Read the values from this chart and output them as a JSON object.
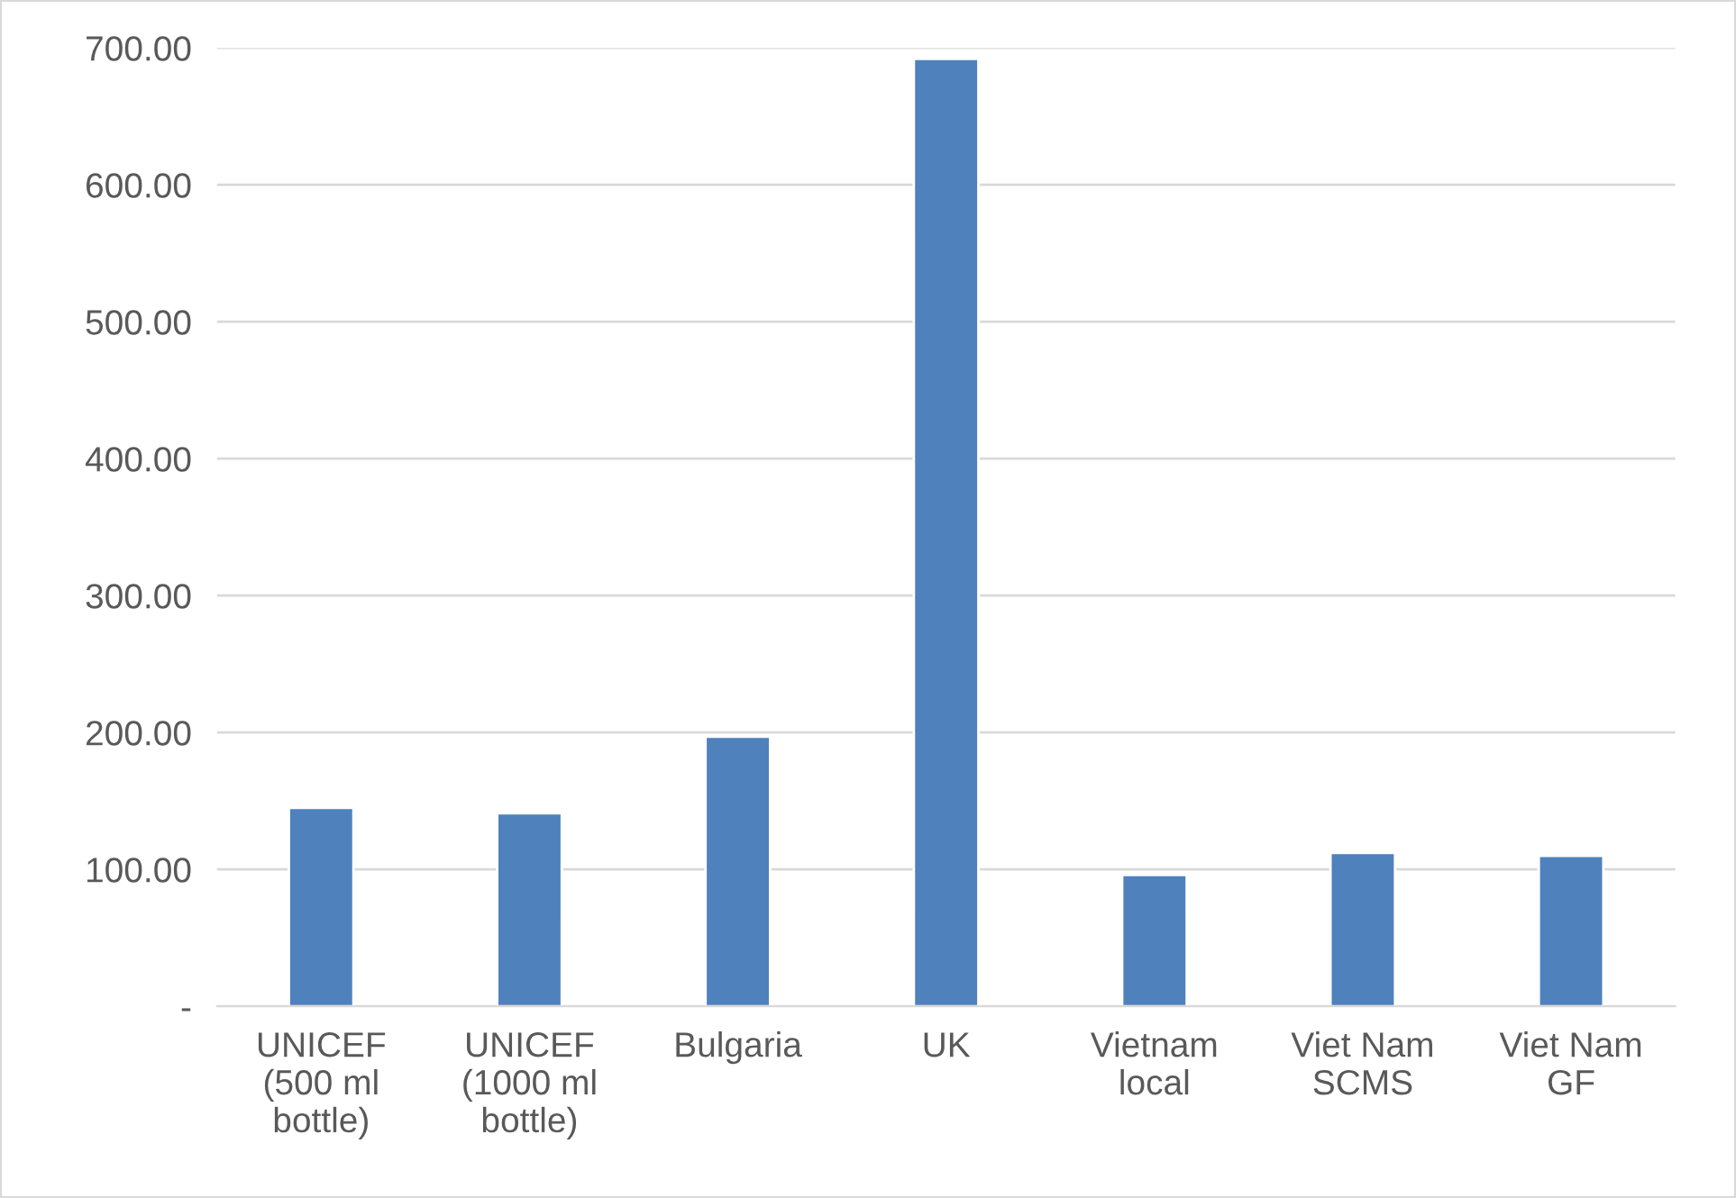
{
  "chart_data": {
    "type": "bar",
    "categories": [
      "UNICEF\n(500 ml\nbottle)",
      "UNICEF\n(1000 ml\nbottle)",
      "Bulgaria",
      "UK",
      "Vietnam\nlocal",
      "Viet Nam\nSCMS",
      "Viet Nam\nGF"
    ],
    "values": [
      145,
      141,
      197,
      692,
      96,
      112,
      110
    ],
    "color": "#4f81bd",
    "ylim": [
      0,
      700
    ],
    "yticks": [
      {
        "value": 0,
        "label": "-"
      },
      {
        "value": 100,
        "label": "100.00"
      },
      {
        "value": 200,
        "label": "200.00"
      },
      {
        "value": 300,
        "label": "300.00"
      },
      {
        "value": 400,
        "label": "400.00"
      },
      {
        "value": 500,
        "label": "500.00"
      },
      {
        "value": 600,
        "label": "600.00"
      },
      {
        "value": 700,
        "label": "700.00"
      }
    ],
    "grid": "y",
    "legend": false
  }
}
